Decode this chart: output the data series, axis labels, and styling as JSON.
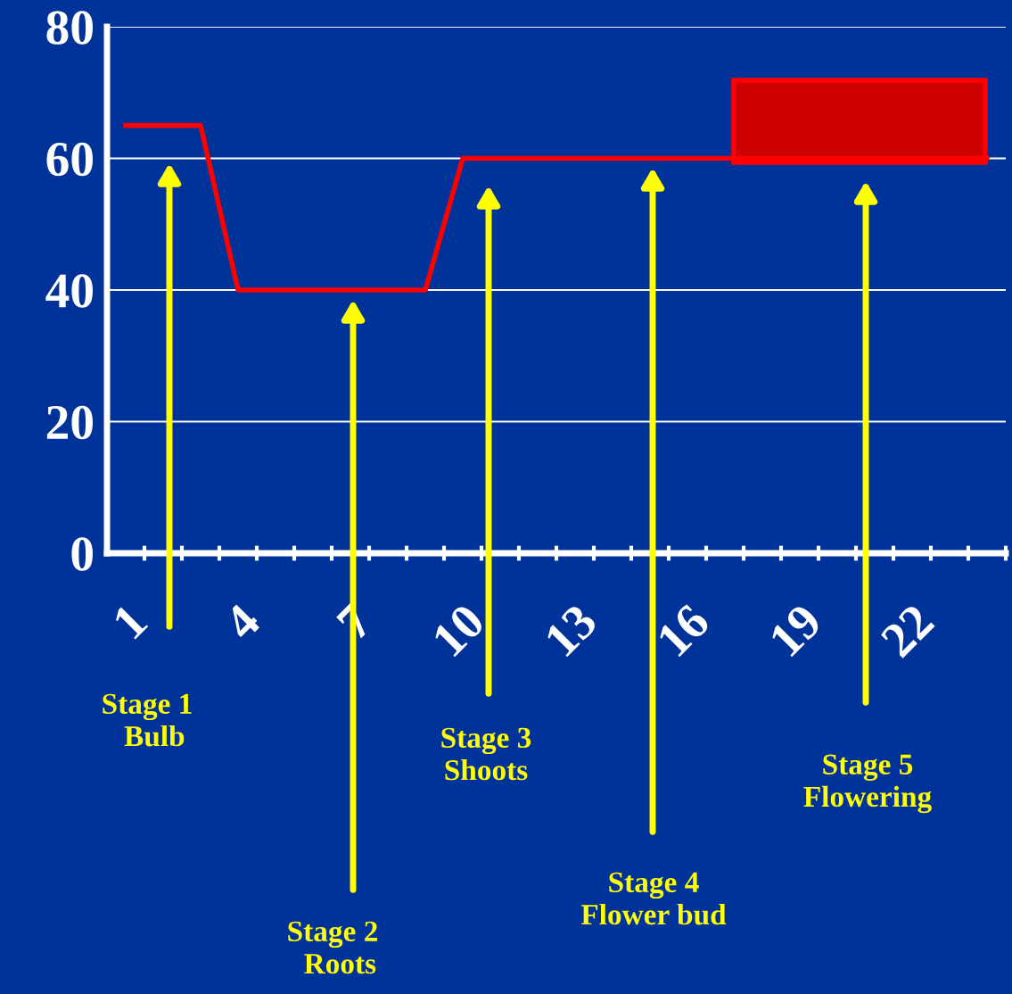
{
  "chart_data": {
    "type": "line",
    "categories": [
      "1",
      null,
      null,
      "4",
      null,
      null,
      "7",
      null,
      null,
      "10",
      null,
      null,
      "13",
      null,
      null,
      "16",
      null,
      null,
      "19",
      null,
      null,
      "22",
      null,
      null
    ],
    "series": [
      {
        "color": "#ff0000",
        "values": [
          65,
          65,
          65,
          40,
          40,
          40,
          40,
          40,
          40,
          60,
          60,
          60,
          60,
          60,
          60,
          60,
          60,
          60,
          60,
          60,
          60,
          60,
          60,
          60
        ]
      }
    ],
    "ylim": [
      0,
      80
    ],
    "yticks": [
      0,
      20,
      40,
      60,
      80
    ],
    "grid": "y",
    "marker": "none",
    "line_style": "solid",
    "annotations": [
      "Stage 1\n  Bulb",
      "Stage 2\n  Roots",
      "Stage 3\nShoots",
      "Stage 4\nFlower bud",
      "Stage 5\nFlowering"
    ]
  }
}
